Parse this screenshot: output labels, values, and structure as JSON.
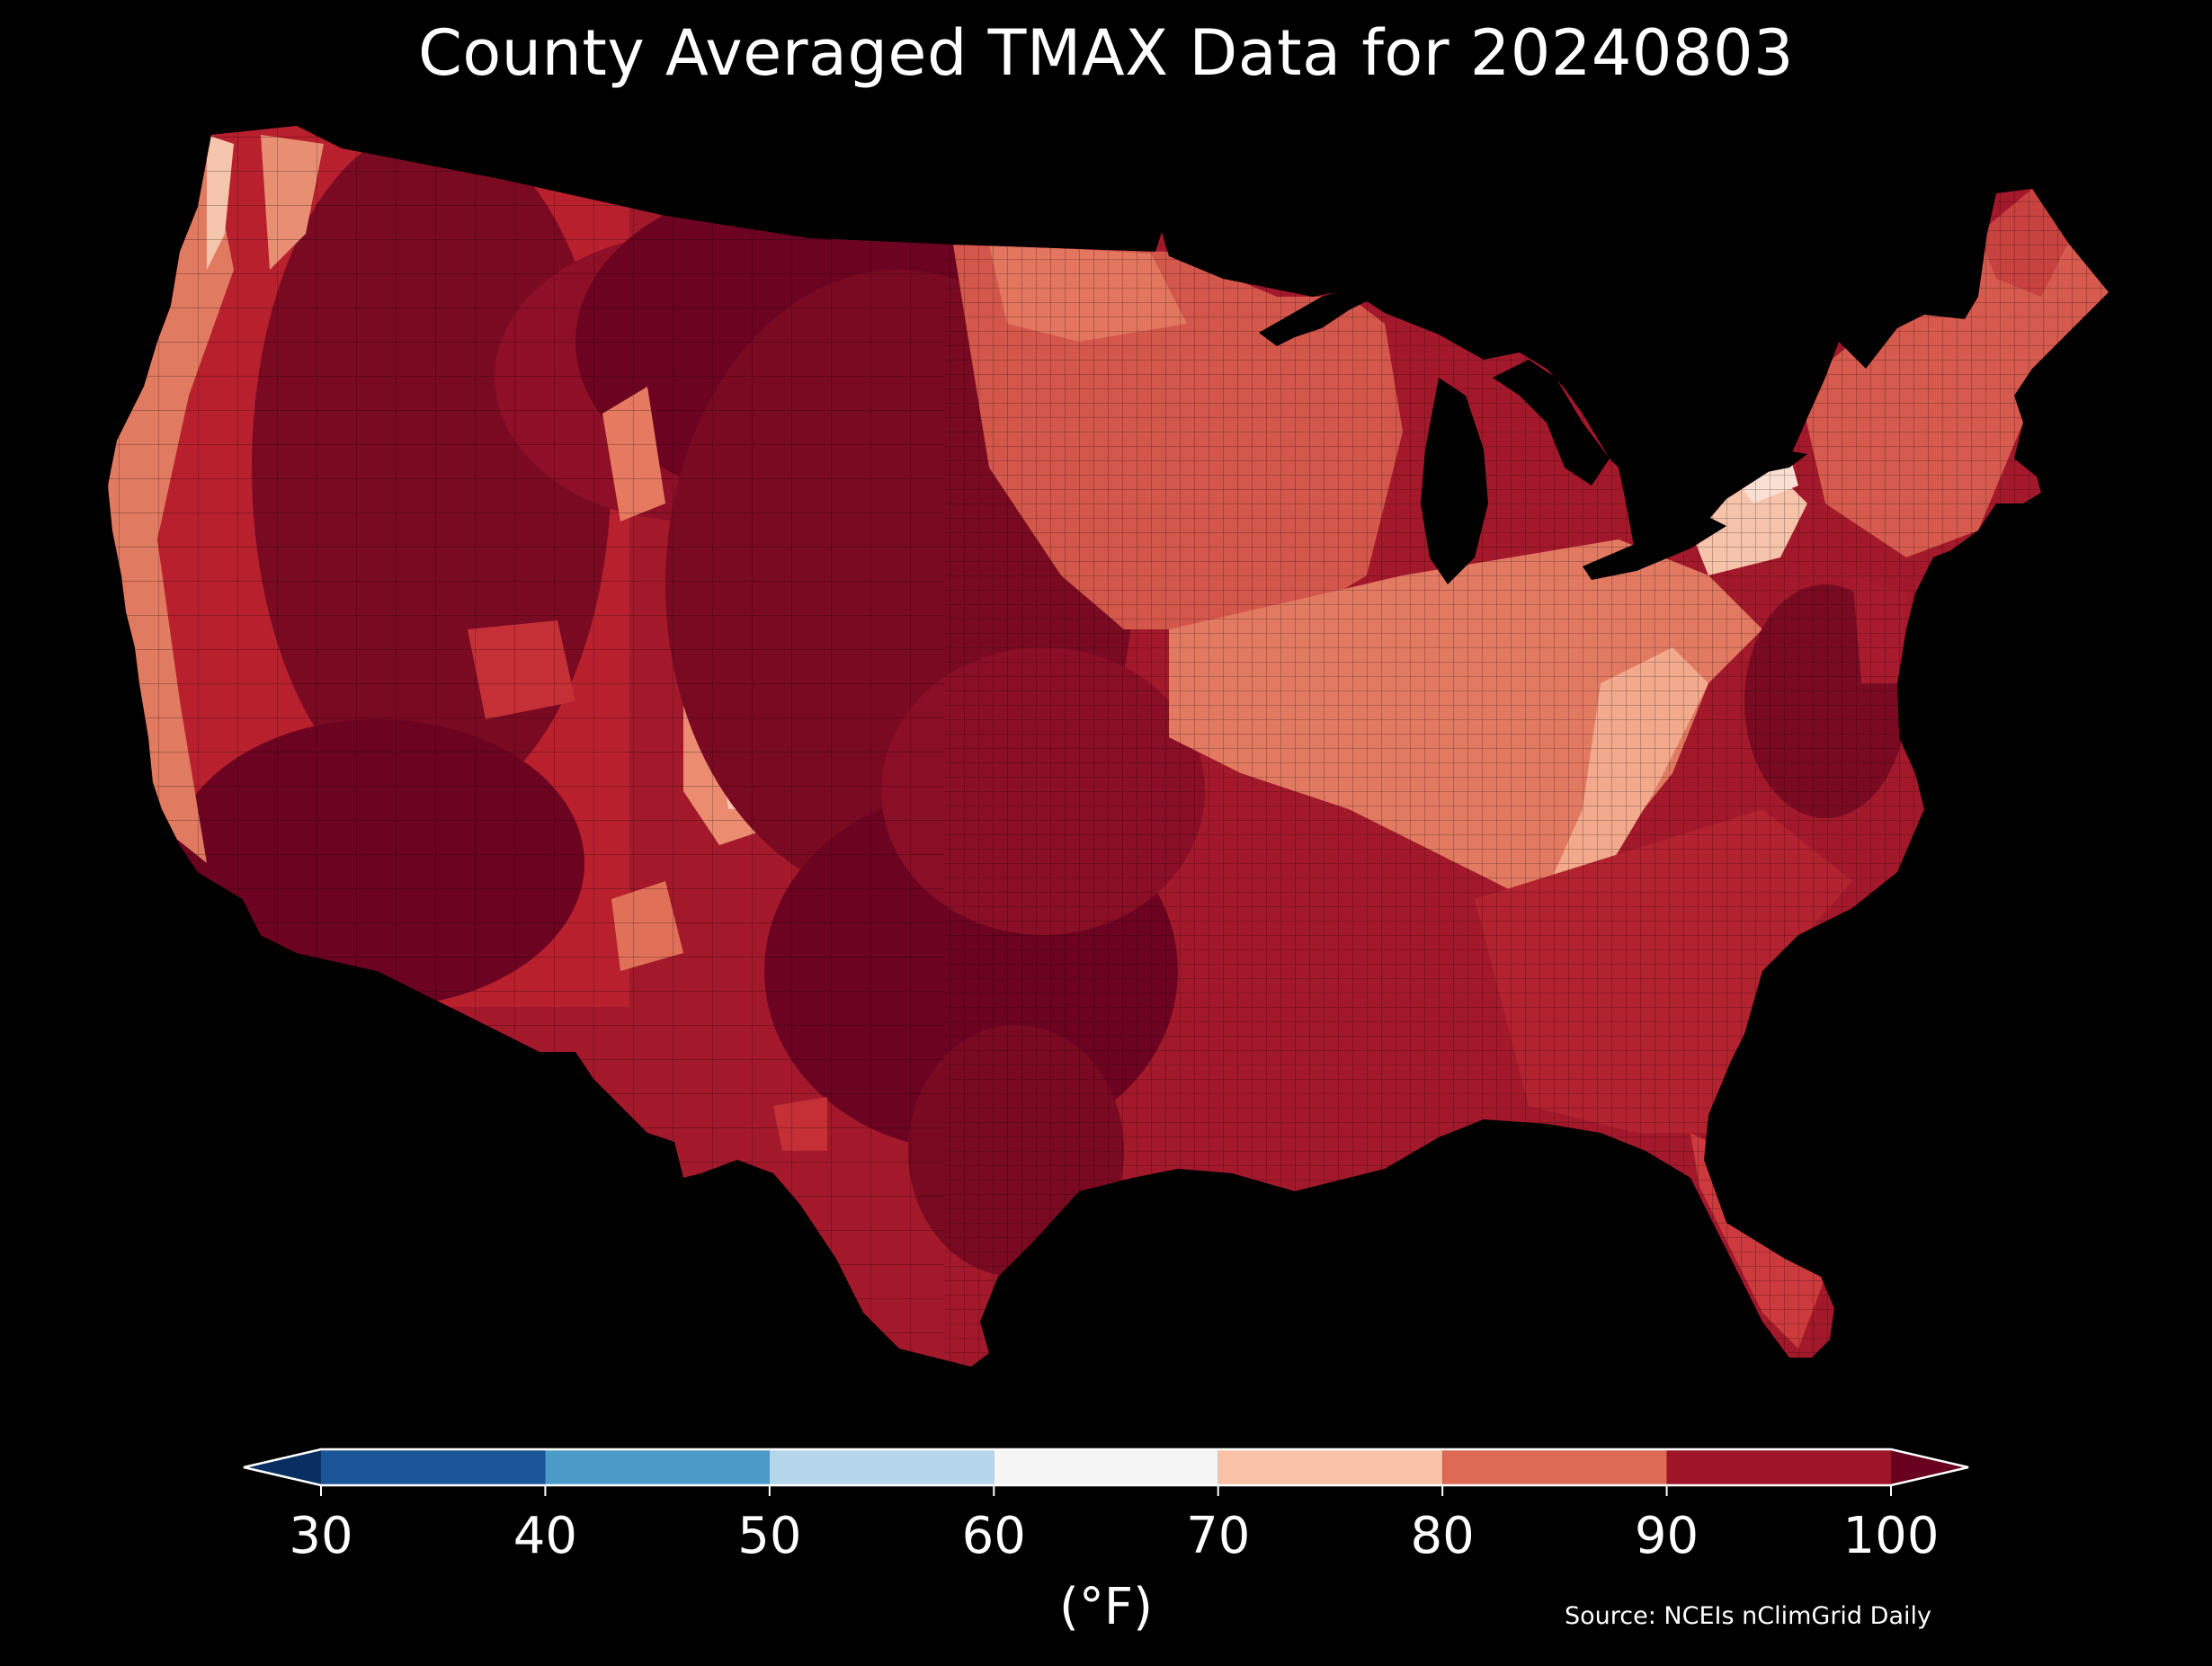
{
  "title": "County Averaged TMAX Data for 20240803",
  "colorbar": {
    "unit_label": "(°F)",
    "ticks": [
      "30",
      "40",
      "50",
      "60",
      "70",
      "80",
      "90",
      "100"
    ],
    "bins": [
      {
        "min": 30,
        "max": 40,
        "color": "#1a5597"
      },
      {
        "min": 40,
        "max": 50,
        "color": "#4b9bc9"
      },
      {
        "min": 50,
        "max": 60,
        "color": "#b5d6ea"
      },
      {
        "min": 60,
        "max": 70,
        "color": "#f5f5f5"
      },
      {
        "min": 70,
        "max": 80,
        "color": "#f9c2a6"
      },
      {
        "min": 80,
        "max": 90,
        "color": "#dc6a55"
      },
      {
        "min": 90,
        "max": 100,
        "color": "#9d1527"
      }
    ],
    "under_color": "#082e62",
    "over_color": "#6a0020"
  },
  "source": "Source: NCEIs nClimGrid Daily"
}
